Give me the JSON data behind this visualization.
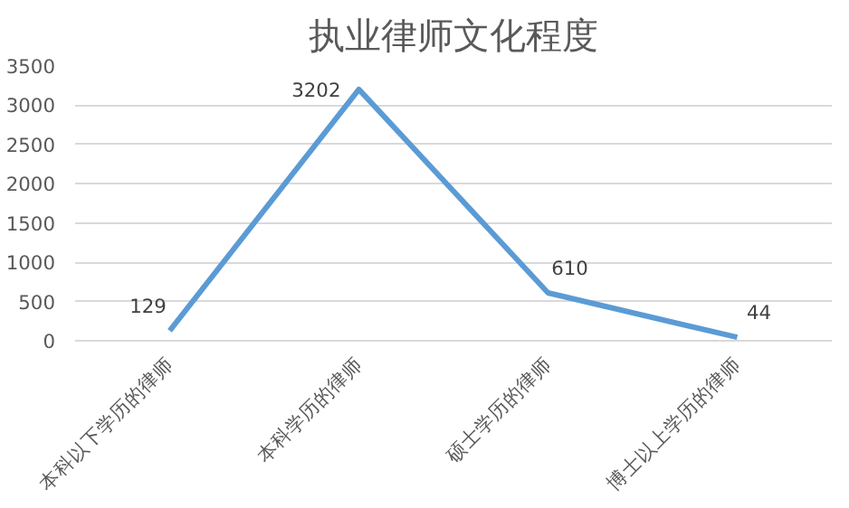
{
  "chart_data": {
    "type": "line",
    "title": "执业律师文化程度",
    "categories": [
      "本科以下学历的律师",
      "本科学历的律师",
      "硕士学历的律师",
      "博士以上学历的律师"
    ],
    "series": [
      {
        "color": "#5b9bd5",
        "values": [
          129,
          3202,
          610,
          44
        ]
      }
    ],
    "ylim": [
      0,
      3500
    ],
    "yticks": [
      0,
      500,
      1000,
      1500,
      2000,
      2500,
      3000,
      3500
    ],
    "grid": "y",
    "data_labels": true,
    "marker": "none",
    "line_style": "solid"
  }
}
